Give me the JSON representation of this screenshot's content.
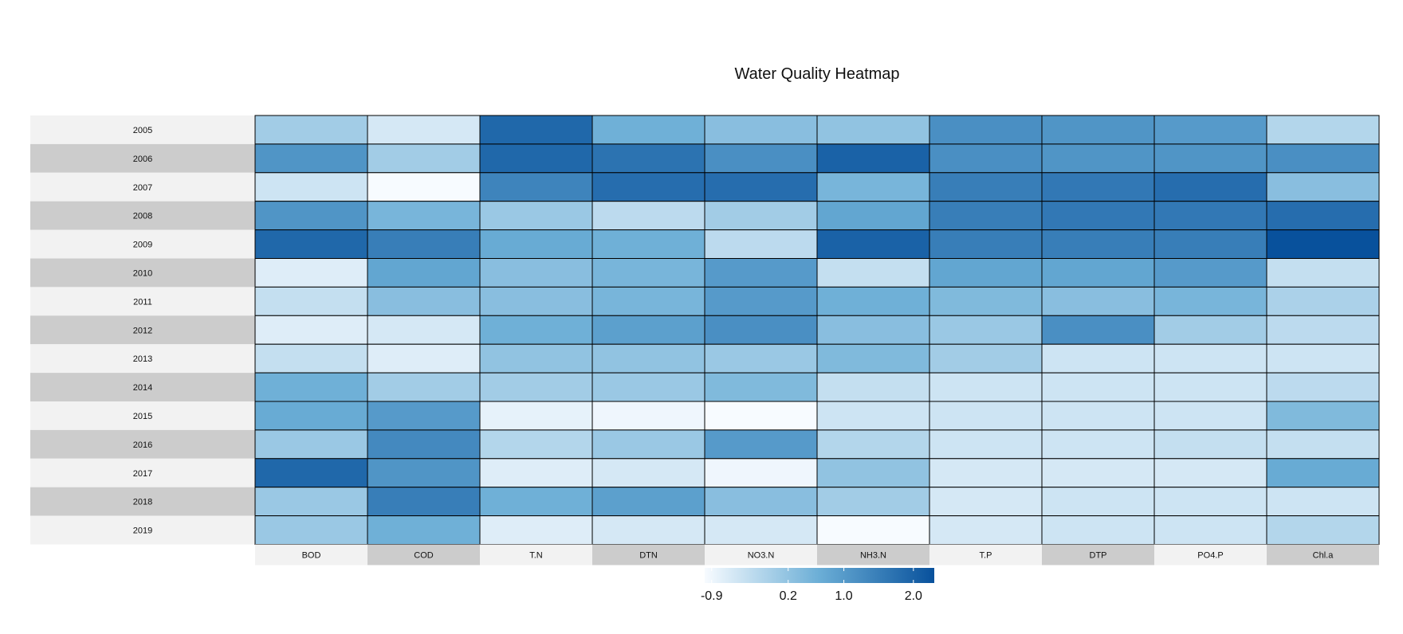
{
  "chart_data": {
    "type": "heatmap",
    "title": "Water Quality Heatmap",
    "rows": [
      "2005",
      "2006",
      "2007",
      "2008",
      "2009",
      "2010",
      "2011",
      "2012",
      "2013",
      "2014",
      "2015",
      "2016",
      "2017",
      "2018",
      "2019"
    ],
    "columns": [
      "BOD",
      "COD",
      "T.N",
      "DTN",
      "NO3.N",
      "NH3.N",
      "T.P",
      "DTP",
      "PO4.P",
      "Chl.a"
    ],
    "values": [
      [
        0.0,
        -0.6,
        1.9,
        0.6,
        0.3,
        0.2,
        1.2,
        1.1,
        1.0,
        -0.2
      ],
      [
        1.1,
        0.0,
        1.9,
        1.7,
        1.2,
        2.0,
        1.2,
        1.1,
        1.1,
        1.2
      ],
      [
        -0.5,
        -1.0,
        1.4,
        1.8,
        1.8,
        0.5,
        1.5,
        1.6,
        1.8,
        0.3
      ],
      [
        1.1,
        0.5,
        0.1,
        -0.3,
        0.0,
        0.8,
        1.5,
        1.6,
        1.6,
        1.8
      ],
      [
        1.9,
        1.5,
        0.7,
        0.6,
        -0.3,
        2.0,
        1.5,
        1.5,
        1.5,
        2.3
      ],
      [
        -0.7,
        0.8,
        0.3,
        0.5,
        1.0,
        -0.4,
        0.8,
        0.8,
        1.0,
        -0.4
      ],
      [
        -0.4,
        0.3,
        0.3,
        0.5,
        1.0,
        0.6,
        0.4,
        0.3,
        0.5,
        -0.1
      ],
      [
        -0.7,
        -0.6,
        0.6,
        0.9,
        1.2,
        0.3,
        0.1,
        1.2,
        0.0,
        -0.3
      ],
      [
        -0.4,
        -0.7,
        0.2,
        0.2,
        0.1,
        0.4,
        0.0,
        -0.5,
        -0.5,
        -0.5
      ],
      [
        0.6,
        0.0,
        0.0,
        0.1,
        0.4,
        -0.4,
        -0.5,
        -0.5,
        -0.5,
        -0.3
      ],
      [
        0.7,
        1.0,
        -0.8,
        -0.9,
        -1.0,
        -0.5,
        -0.5,
        -0.5,
        -0.5,
        0.4
      ],
      [
        0.1,
        1.3,
        -0.2,
        0.1,
        1.0,
        -0.2,
        -0.5,
        -0.5,
        -0.4,
        -0.4
      ],
      [
        1.9,
        1.1,
        -0.7,
        -0.6,
        -0.9,
        0.2,
        -0.6,
        -0.6,
        -0.6,
        0.7
      ],
      [
        0.1,
        1.5,
        0.6,
        0.9,
        0.3,
        0.0,
        -0.6,
        -0.5,
        -0.5,
        -0.5
      ],
      [
        0.1,
        0.6,
        -0.7,
        -0.6,
        -0.6,
        -1.0,
        -0.6,
        -0.5,
        -0.5,
        -0.2
      ]
    ],
    "color_scale": {
      "low_color": "#f7fbff",
      "high_color": "#08519c",
      "range": [
        -1.0,
        2.3
      ],
      "tick_labels": [
        "-0.9",
        "0.2",
        "1.0",
        "2.0"
      ],
      "tick_values": [
        -0.9,
        0.2,
        1.0,
        2.0
      ]
    },
    "row_label_shades": [
      "#f2f2f2",
      "#cccccc"
    ],
    "legend_placement": "bottom-center"
  }
}
